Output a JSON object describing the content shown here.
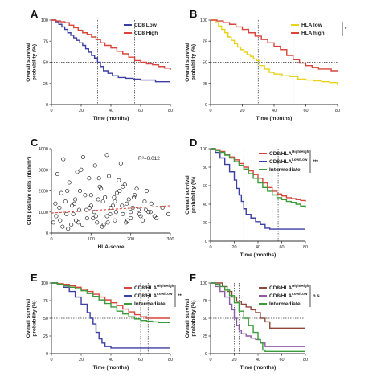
{
  "colors": {
    "axis": "#333333",
    "ref": "#333333"
  },
  "chart_data": [
    {
      "id": "A",
      "type": "line",
      "panel_label": "A",
      "xlabel": "Time (months)",
      "ylabel": "Overall survival probability (%)",
      "xlim": [
        0,
        80
      ],
      "ylim": [
        0,
        100
      ],
      "xticks": [
        0,
        20,
        40,
        60,
        80
      ],
      "yticks": [
        0,
        25,
        50,
        75,
        100
      ],
      "legend_placement": "top-right",
      "ref_y": 50,
      "ref_x": [
        31,
        56
      ],
      "significance": "",
      "series": [
        {
          "name": "CD8 Low",
          "color": "#3b3fa3",
          "x": [
            0,
            3,
            5,
            7,
            9,
            11,
            13,
            15,
            17,
            19,
            21,
            23,
            25,
            27,
            29,
            31,
            33,
            35,
            38,
            41,
            45,
            50,
            55,
            60,
            65,
            70,
            75,
            80
          ],
          "y": [
            100,
            98,
            95,
            92,
            89,
            85,
            82,
            79,
            76,
            73,
            70,
            66,
            62,
            58,
            55,
            50,
            45,
            40,
            37,
            34,
            32,
            31,
            30,
            29,
            29,
            27,
            27,
            27
          ]
        },
        {
          "name": "CD8 High",
          "color": "#d9453a",
          "x": [
            0,
            3,
            6,
            9,
            12,
            15,
            18,
            21,
            24,
            27,
            30,
            33,
            36,
            40,
            44,
            48,
            52,
            56,
            60,
            64,
            68,
            72,
            76,
            80
          ],
          "y": [
            100,
            99,
            98,
            97,
            94,
            91,
            88,
            85,
            83,
            80,
            77,
            73,
            70,
            67,
            63,
            60,
            56,
            52,
            50,
            48,
            47,
            45,
            43,
            41
          ]
        }
      ]
    },
    {
      "id": "B",
      "type": "line",
      "panel_label": "B",
      "xlabel": "Time (months)",
      "ylabel": "Overall survival probability (%)",
      "xlim": [
        0,
        80
      ],
      "ylim": [
        0,
        100
      ],
      "xticks": [
        0,
        20,
        40,
        60,
        80
      ],
      "yticks": [
        0,
        25,
        50,
        75,
        100
      ],
      "legend_placement": "top-right",
      "ref_y": 50,
      "ref_x": [
        30,
        52
      ],
      "significance": "*",
      "series": [
        {
          "name": "HLA low",
          "color": "#e8d21b",
          "x": [
            0,
            3,
            5,
            7,
            9,
            11,
            13,
            15,
            17,
            19,
            21,
            23,
            25,
            27,
            29,
            31,
            34,
            37,
            40,
            45,
            50,
            55,
            60,
            65,
            70,
            75,
            80
          ],
          "y": [
            100,
            97,
            93,
            89,
            85,
            80,
            76,
            72,
            68,
            65,
            62,
            59,
            57,
            54,
            52,
            46,
            42,
            38,
            36,
            34,
            33,
            30,
            29,
            28,
            27,
            26,
            23
          ]
        },
        {
          "name": "HLA high",
          "color": "#d9453a",
          "x": [
            0,
            4,
            8,
            12,
            16,
            20,
            24,
            28,
            32,
            36,
            40,
            44,
            48,
            52,
            56,
            60,
            64,
            68,
            72,
            76,
            80
          ],
          "y": [
            100,
            99,
            97,
            95,
            92,
            89,
            85,
            81,
            77,
            73,
            69,
            65,
            58,
            53,
            49,
            46,
            44,
            42,
            42,
            40,
            40
          ]
        }
      ]
    },
    {
      "id": "C",
      "type": "scatter",
      "panel_label": "C",
      "xlabel": "HLA-score",
      "ylabel": "CD8 positive cells (nb/mm²)",
      "xlim": [
        0,
        300
      ],
      "ylim": [
        0,
        4000
      ],
      "xticks": [
        0,
        100,
        200,
        300
      ],
      "yticks": [
        0,
        1000,
        2000,
        3000,
        4000
      ],
      "annotation": "R²=0.012",
      "trend": {
        "x": [
          0,
          300
        ],
        "y": [
          950,
          1300
        ],
        "color": "#d9453a"
      },
      "points": {
        "x": [
          5,
          12,
          20,
          28,
          35,
          40,
          55,
          62,
          70,
          78,
          85,
          90,
          100,
          108,
          115,
          122,
          130,
          140,
          150,
          160,
          170,
          180,
          190,
          200,
          210,
          220,
          230,
          240,
          250,
          260,
          15,
          25,
          45,
          60,
          75,
          95,
          110,
          125,
          135,
          145,
          155,
          165,
          175,
          185,
          195,
          205,
          215,
          225,
          235,
          245,
          30,
          50,
          65,
          80,
          100,
          120,
          140,
          160,
          180,
          200,
          10,
          22,
          38,
          52,
          68,
          88,
          105,
          118,
          132,
          148,
          163,
          178,
          192,
          208,
          222,
          238,
          252,
          265,
          280,
          295,
          42,
          58,
          72,
          96,
          112,
          128,
          142,
          158,
          172,
          188
        ],
        "y": [
          500,
          800,
          1200,
          300,
          1500,
          2000,
          900,
          600,
          1100,
          400,
          1800,
          700,
          1300,
          1000,
          500,
          2200,
          1500,
          800,
          1200,
          600,
          2500,
          900,
          1400,
          700,
          1800,
          1100,
          600,
          2000,
          1000,
          800,
          2800,
          1900,
          2400,
          1600,
          3000,
          2600,
          3200,
          2100,
          1700,
          2700,
          1300,
          1900,
          3300,
          2300,
          1600,
          1200,
          2100,
          800,
          1500,
          1000,
          3500,
          400,
          2900,
          3600,
          1800,
          2600,
          3700,
          1500,
          2200,
          1000,
          1400,
          600,
          900,
          1300,
          500,
          1100,
          700,
          1600,
          400,
          900,
          1000,
          1300,
          600,
          1700,
          900,
          1100,
          1400,
          700,
          1200,
          900,
          200,
          1400,
          2000,
          1200,
          800,
          300,
          500,
          1700,
          2000,
          500
        ],
        "color": "#222222"
      }
    },
    {
      "id": "D",
      "type": "line",
      "panel_label": "D",
      "xlabel": "Time (months)",
      "ylabel": "Overall survival probability (%)",
      "xlim": [
        0,
        80
      ],
      "ylim": [
        0,
        100
      ],
      "xticks": [
        0,
        20,
        40,
        60,
        80
      ],
      "yticks": [
        0,
        20,
        40,
        60,
        80,
        100
      ],
      "legend_placement": "top-right",
      "ref_y": 50,
      "ref_x": [
        28,
        52,
        57
      ],
      "significance": "***",
      "series": [
        {
          "name": "CD8/HLA",
          "name_sup": "High/High",
          "color": "#d9453a",
          "x": [
            0,
            4,
            8,
            12,
            16,
            20,
            24,
            28,
            32,
            36,
            40,
            44,
            48,
            52,
            56,
            60,
            64,
            68,
            72,
            76,
            80
          ],
          "y": [
            100,
            99,
            97,
            94,
            91,
            88,
            84,
            80,
            76,
            72,
            68,
            63,
            58,
            54,
            51,
            49,
            47,
            46,
            45,
            44,
            43
          ]
        },
        {
          "name": "CD8/HLA",
          "name_sup": "Low/Low",
          "color": "#3b3fa3",
          "x": [
            0,
            4,
            8,
            12,
            16,
            20,
            22,
            24,
            26,
            28,
            30,
            34,
            38,
            42,
            46,
            50,
            55,
            60,
            65,
            70,
            75,
            80
          ],
          "y": [
            100,
            96,
            90,
            83,
            75,
            66,
            57,
            50,
            43,
            35,
            29,
            25,
            21,
            18,
            14,
            13,
            13,
            13,
            13,
            13,
            13,
            13
          ]
        },
        {
          "name": "Intermediate",
          "color": "#3a9b3a",
          "x": [
            0,
            4,
            8,
            12,
            16,
            20,
            24,
            28,
            32,
            36,
            40,
            44,
            48,
            52,
            56,
            60,
            64,
            68,
            72,
            76,
            80
          ],
          "y": [
            100,
            98,
            96,
            93,
            90,
            86,
            82,
            78,
            73,
            68,
            63,
            58,
            54,
            50,
            47,
            45,
            43,
            42,
            40,
            38,
            36
          ]
        }
      ]
    },
    {
      "id": "E",
      "type": "line",
      "panel_label": "E",
      "xlabel": "Time (months)",
      "ylabel": "Overall survival probability (%)",
      "xlim": [
        0,
        80
      ],
      "ylim": [
        0,
        100
      ],
      "xticks": [
        0,
        20,
        40,
        60,
        80
      ],
      "yticks": [
        0,
        25,
        50,
        75,
        100
      ],
      "legend_placement": "top-right",
      "ref_y": 50,
      "ref_x": [
        30,
        60,
        65
      ],
      "significance": "**",
      "series": [
        {
          "name": "CD8/HLA",
          "name_sup": "High/High",
          "color": "#d9453a",
          "x": [
            0,
            4,
            8,
            12,
            16,
            20,
            24,
            28,
            32,
            36,
            40,
            44,
            48,
            52,
            56,
            60,
            64,
            68,
            72,
            76,
            80
          ],
          "y": [
            100,
            99,
            98,
            96,
            94,
            91,
            88,
            84,
            80,
            76,
            72,
            68,
            63,
            59,
            55,
            52,
            50,
            50,
            50,
            50,
            50
          ]
        },
        {
          "name": "CD8/HLA",
          "name_sup": "Low/Low",
          "color": "#3b3fa3",
          "x": [
            0,
            4,
            8,
            12,
            16,
            20,
            24,
            26,
            28,
            30,
            32,
            34,
            36,
            40,
            44,
            50,
            55,
            60,
            65,
            70,
            75,
            80
          ],
          "y": [
            100,
            98,
            94,
            88,
            80,
            70,
            58,
            50,
            42,
            30,
            21,
            15,
            10,
            8,
            8,
            8,
            8,
            8,
            8,
            8,
            8,
            8
          ]
        },
        {
          "name": "Intermediate",
          "color": "#3a9b3a",
          "x": [
            0,
            4,
            8,
            12,
            16,
            20,
            24,
            28,
            32,
            36,
            40,
            44,
            48,
            52,
            56,
            60,
            64,
            68,
            72,
            76,
            80
          ],
          "y": [
            100,
            98,
            96,
            94,
            92,
            89,
            85,
            81,
            76,
            71,
            66,
            60,
            56,
            52,
            49,
            47,
            46,
            45,
            44,
            44,
            44
          ]
        }
      ]
    },
    {
      "id": "F",
      "type": "line",
      "panel_label": "F",
      "xlabel": "Time (months)",
      "ylabel": "Overall survival probability (%)",
      "xlim": [
        0,
        80
      ],
      "ylim": [
        0,
        100
      ],
      "xticks": [
        0,
        20,
        40,
        60,
        80
      ],
      "yticks": [
        0,
        25,
        50,
        75,
        100
      ],
      "legend_placement": "top-right",
      "ref_y": 50,
      "ref_x": [
        20,
        24,
        45
      ],
      "significance": "n.s",
      "series": [
        {
          "name": "CD8/HLA",
          "name_sup": "High/High",
          "color": "#8b4a3a",
          "x": [
            0,
            6,
            10,
            14,
            18,
            22,
            26,
            30,
            34,
            38,
            42,
            46,
            50,
            55,
            60,
            65,
            70,
            75,
            80
          ],
          "y": [
            100,
            100,
            95,
            88,
            80,
            74,
            70,
            66,
            62,
            58,
            50,
            45,
            36,
            36,
            36,
            36,
            36,
            36,
            36
          ]
        },
        {
          "name": "CD8/HLA",
          "name_sup": "Low/Low",
          "color": "#8b5aa3",
          "x": [
            0,
            4,
            8,
            12,
            16,
            18,
            20,
            22,
            24,
            26,
            30,
            34,
            38,
            42,
            46,
            50,
            60,
            70,
            80
          ],
          "y": [
            100,
            95,
            88,
            80,
            70,
            62,
            50,
            40,
            33,
            28,
            25,
            22,
            20,
            15,
            10,
            10,
            10,
            10,
            10
          ]
        },
        {
          "name": "Intermediate",
          "color": "#3a9b3a",
          "x": [
            0,
            4,
            8,
            12,
            16,
            20,
            24,
            28,
            32,
            36,
            40,
            42,
            44,
            46,
            48,
            50,
            60,
            70,
            80
          ],
          "y": [
            100,
            98,
            95,
            90,
            82,
            72,
            60,
            50,
            40,
            30,
            20,
            15,
            5,
            3,
            3,
            3,
            3,
            3,
            3
          ]
        }
      ]
    }
  ]
}
